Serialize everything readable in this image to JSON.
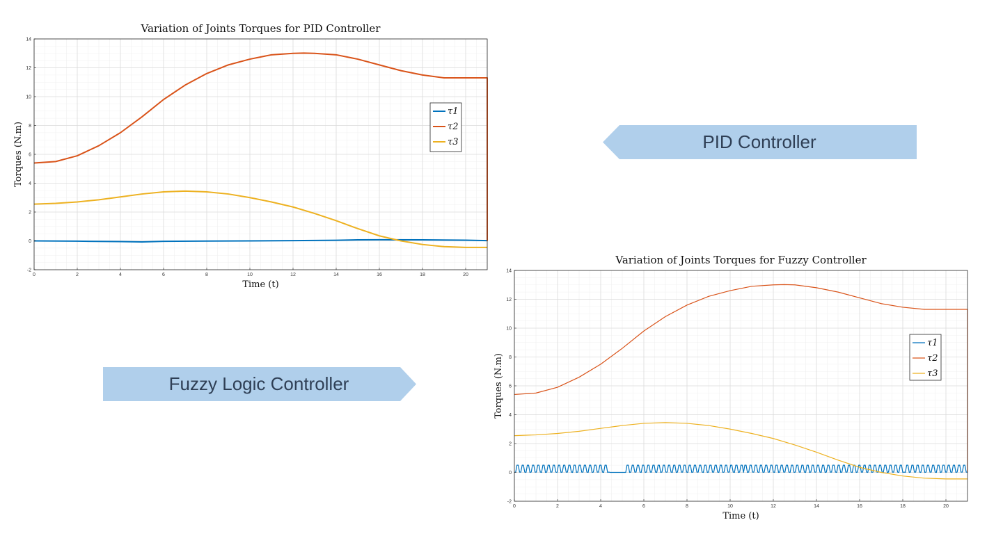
{
  "arrows": {
    "pid_label": "PID Controller",
    "fuzzy_label": "Fuzzy Logic Controller",
    "fill": "#b0cfeb"
  },
  "colors": {
    "tau1": "#0072bd",
    "tau2": "#d95319",
    "tau3": "#edb120"
  },
  "chart_data": [
    {
      "type": "line",
      "title": "Variation of Joints Torques for PID Controller",
      "xlabel": "Time (t)",
      "ylabel": "Torques (N.m)",
      "xlim": [
        0,
        21
      ],
      "ylim": [
        -2,
        14
      ],
      "xticks": [
        0,
        2,
        4,
        6,
        8,
        10,
        12,
        14,
        16,
        18,
        20
      ],
      "yticks": [
        -2,
        0,
        2,
        4,
        6,
        8,
        10,
        12,
        14
      ],
      "grid": true,
      "legend_position": "right",
      "series": [
        {
          "name": "τ1",
          "x": [
            0,
            2,
            4,
            5,
            6,
            8,
            10,
            12,
            14,
            15,
            16,
            18,
            20,
            21
          ],
          "y": [
            0,
            -0.02,
            -0.05,
            -0.07,
            -0.03,
            -0.01,
            0,
            0.02,
            0.04,
            0.07,
            0.08,
            0.07,
            0.05,
            0.02
          ]
        },
        {
          "name": "τ2",
          "x": [
            0,
            1,
            2,
            3,
            4,
            5,
            6,
            7,
            8,
            9,
            10,
            11,
            12,
            12.5,
            13,
            14,
            15,
            16,
            17,
            18,
            19,
            20,
            21
          ],
          "y": [
            5.4,
            5.5,
            5.9,
            6.6,
            7.5,
            8.6,
            9.8,
            10.8,
            11.6,
            12.2,
            12.6,
            12.9,
            13.0,
            13.02,
            13.0,
            12.9,
            12.6,
            12.2,
            11.8,
            11.5,
            11.3,
            11.3,
            11.3
          ]
        },
        {
          "name": "τ3",
          "x": [
            0,
            1,
            2,
            3,
            4,
            5,
            6,
            7,
            8,
            9,
            10,
            11,
            12,
            13,
            14,
            15,
            16,
            17,
            18,
            19,
            20,
            21
          ],
          "y": [
            2.55,
            2.6,
            2.7,
            2.85,
            3.05,
            3.25,
            3.4,
            3.45,
            3.4,
            3.25,
            3.0,
            2.7,
            2.35,
            1.9,
            1.4,
            0.85,
            0.35,
            0.0,
            -0.25,
            -0.4,
            -0.45,
            -0.45
          ]
        }
      ]
    },
    {
      "type": "line",
      "title": "Variation of Joints Torques for Fuzzy Controller",
      "xlabel": "Time (t)",
      "ylabel": "Torques (N.m)",
      "xlim": [
        0,
        21
      ],
      "ylim": [
        -2,
        14
      ],
      "xticks": [
        0,
        2,
        4,
        6,
        8,
        10,
        12,
        14,
        16,
        18,
        20
      ],
      "yticks": [
        -2,
        0,
        2,
        4,
        6,
        8,
        10,
        12,
        14
      ],
      "grid": true,
      "legend_position": "right",
      "series": [
        {
          "name": "τ1",
          "x": [
            0,
            4.4,
            4.6,
            5.0,
            5.2,
            21
          ],
          "y": [
            0.5,
            0.5,
            0,
            0,
            0.5,
            0.5
          ]
        },
        {
          "name": "τ2",
          "x": [
            0,
            1,
            2,
            3,
            4,
            5,
            6,
            7,
            8,
            9,
            10,
            11,
            12,
            12.5,
            13,
            14,
            15,
            16,
            17,
            18,
            19,
            20,
            21
          ],
          "y": [
            5.4,
            5.5,
            5.9,
            6.6,
            7.5,
            8.6,
            9.8,
            10.8,
            11.6,
            12.2,
            12.6,
            12.9,
            13.0,
            13.02,
            13.0,
            12.8,
            12.5,
            12.1,
            11.7,
            11.45,
            11.3,
            11.3,
            11.3
          ]
        },
        {
          "name": "τ3",
          "x": [
            0,
            1,
            2,
            3,
            4,
            5,
            6,
            7,
            8,
            9,
            10,
            11,
            12,
            13,
            14,
            15,
            16,
            17,
            18,
            19,
            20,
            21
          ],
          "y": [
            2.55,
            2.6,
            2.7,
            2.85,
            3.05,
            3.25,
            3.4,
            3.45,
            3.4,
            3.25,
            3.0,
            2.7,
            2.35,
            1.9,
            1.4,
            0.85,
            0.35,
            0.0,
            -0.25,
            -0.4,
            -0.45,
            -0.45
          ]
        }
      ]
    }
  ]
}
